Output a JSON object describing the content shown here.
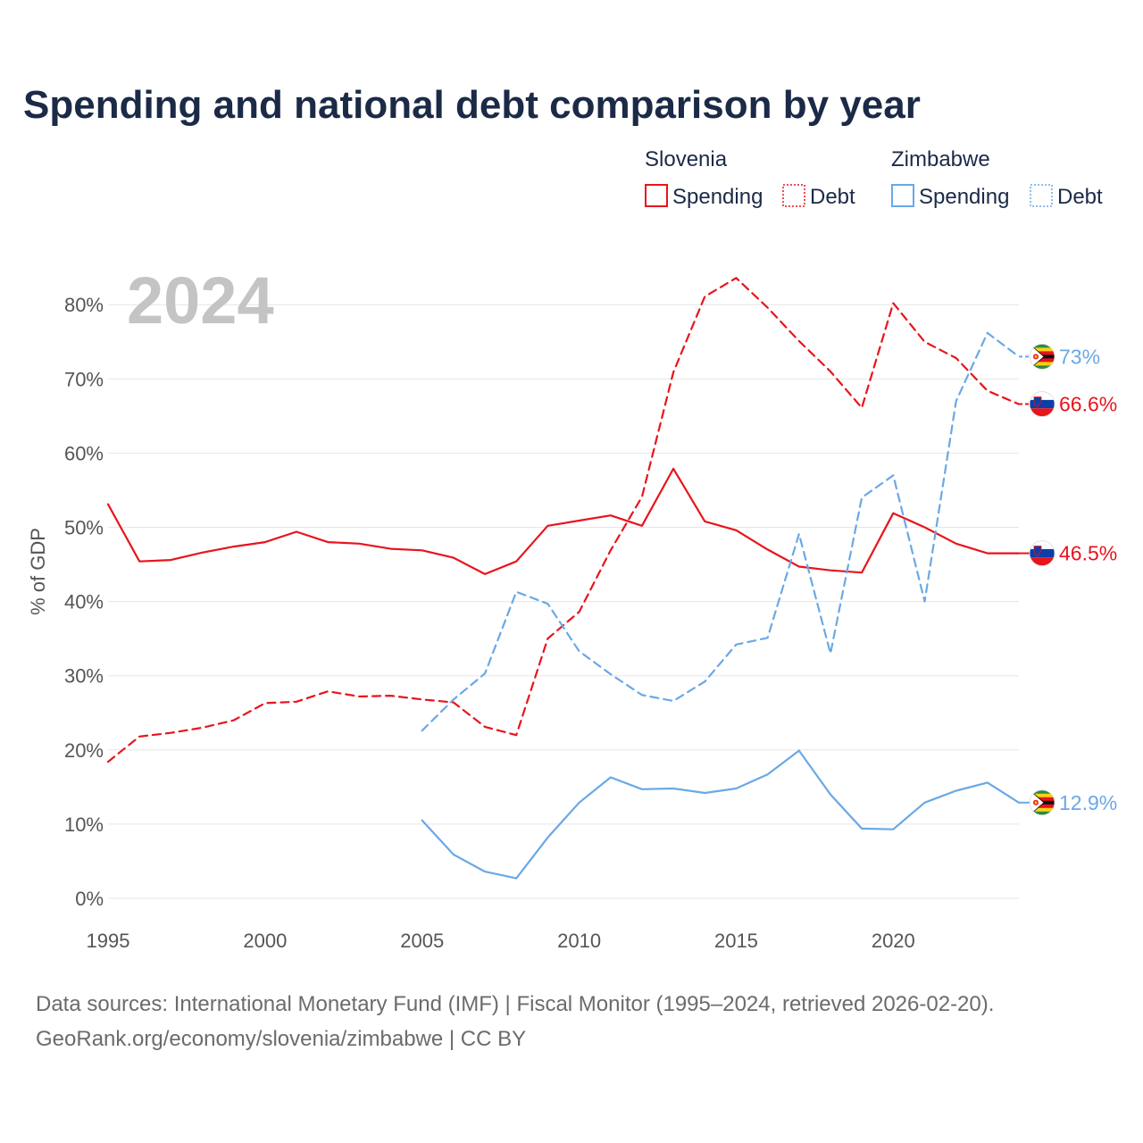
{
  "colors": {
    "slovenia": "#e8141c",
    "zimbabwe": "#6aa8e6",
    "title": "#1b2a47",
    "tick": "#555555",
    "grid": "#e6e6e6",
    "year_watermark": "#c4c4c4",
    "source": "#6b6b6b"
  },
  "legend": {
    "groups": [
      {
        "country": "Slovenia",
        "spending_label": "Spending",
        "debt_label": "Debt"
      },
      {
        "country": "Zimbabwe",
        "spending_label": "Spending",
        "debt_label": "Debt"
      }
    ]
  },
  "chart_data": {
    "type": "line",
    "title": "Spending and national debt comparison by year",
    "year_label": "2024",
    "ylabel": "% of GDP",
    "xlabel": "",
    "xlim": [
      1995,
      2024
    ],
    "ylim": [
      0,
      85
    ],
    "grid": true,
    "x_ticks": [
      1995,
      2000,
      2005,
      2010,
      2015,
      2020
    ],
    "y_ticks": [
      0,
      10,
      20,
      30,
      40,
      50,
      60,
      70,
      80
    ],
    "y_tick_labels": [
      "0%",
      "10%",
      "20%",
      "30%",
      "40%",
      "50%",
      "60%",
      "70%",
      "80%"
    ],
    "series": [
      {
        "name": "Slovenia Spending",
        "country": "Slovenia",
        "metric": "Spending",
        "style": "solid",
        "x": [
          1995,
          1996,
          1997,
          1998,
          1999,
          2000,
          2001,
          2002,
          2003,
          2004,
          2005,
          2006,
          2007,
          2008,
          2009,
          2010,
          2011,
          2012,
          2013,
          2014,
          2015,
          2016,
          2017,
          2018,
          2019,
          2020,
          2021,
          2022,
          2023,
          2024
        ],
        "values": [
          53.1,
          45.4,
          45.6,
          46.6,
          47.4,
          48.0,
          49.4,
          48.0,
          47.8,
          47.1,
          46.9,
          45.9,
          43.7,
          45.4,
          50.2,
          50.9,
          51.6,
          50.2,
          57.9,
          50.8,
          49.6,
          47.0,
          44.7,
          44.2,
          43.9,
          51.9,
          50.0,
          47.8,
          46.5,
          46.5
        ],
        "end_label": "46.5%"
      },
      {
        "name": "Slovenia Debt",
        "country": "Slovenia",
        "metric": "Debt",
        "style": "dashed",
        "x": [
          1995,
          1996,
          1997,
          1998,
          1999,
          2000,
          2001,
          2002,
          2003,
          2004,
          2005,
          2006,
          2007,
          2008,
          2009,
          2010,
          2011,
          2012,
          2013,
          2014,
          2015,
          2016,
          2017,
          2018,
          2019,
          2020,
          2021,
          2022,
          2023,
          2024
        ],
        "values": [
          18.4,
          21.8,
          22.3,
          23.0,
          24.0,
          26.3,
          26.5,
          27.9,
          27.2,
          27.3,
          26.8,
          26.4,
          23.1,
          22.0,
          35.0,
          38.6,
          46.9,
          54.1,
          70.9,
          81.1,
          83.6,
          79.6,
          75.1,
          71.0,
          66.1,
          80.2,
          75.0,
          72.8,
          68.4,
          66.6
        ],
        "end_label": "66.6%"
      },
      {
        "name": "Zimbabwe Spending",
        "country": "Zimbabwe",
        "metric": "Spending",
        "style": "solid",
        "x": [
          2005,
          2006,
          2007,
          2008,
          2009,
          2010,
          2011,
          2012,
          2013,
          2014,
          2015,
          2016,
          2017,
          2018,
          2019,
          2020,
          2021,
          2022,
          2023,
          2024
        ],
        "values": [
          10.5,
          5.9,
          3.6,
          2.7,
          8.2,
          12.9,
          16.3,
          14.7,
          14.8,
          14.2,
          14.8,
          16.7,
          19.9,
          14.0,
          9.4,
          9.3,
          12.9,
          14.5,
          15.6,
          12.9
        ],
        "end_label": "12.9%"
      },
      {
        "name": "Zimbabwe Debt",
        "country": "Zimbabwe",
        "metric": "Debt",
        "style": "dashed",
        "x": [
          2005,
          2006,
          2007,
          2008,
          2009,
          2010,
          2011,
          2012,
          2013,
          2014,
          2015,
          2016,
          2017,
          2018,
          2019,
          2020,
          2021,
          2022,
          2023,
          2024
        ],
        "values": [
          22.6,
          26.8,
          30.3,
          41.3,
          39.7,
          33.3,
          30.2,
          27.4,
          26.6,
          29.2,
          34.2,
          35.1,
          49.1,
          33.0,
          54.0,
          57.0,
          40.0,
          67.0,
          76.2,
          73.0
        ],
        "end_label": "73%"
      }
    ]
  },
  "source": {
    "line1": "Data sources: International Monetary Fund (IMF) | Fiscal Monitor (1995–2024, retrieved 2026-02-20).",
    "line2": "GeoRank.org/economy/slovenia/zimbabwe | CC BY"
  }
}
